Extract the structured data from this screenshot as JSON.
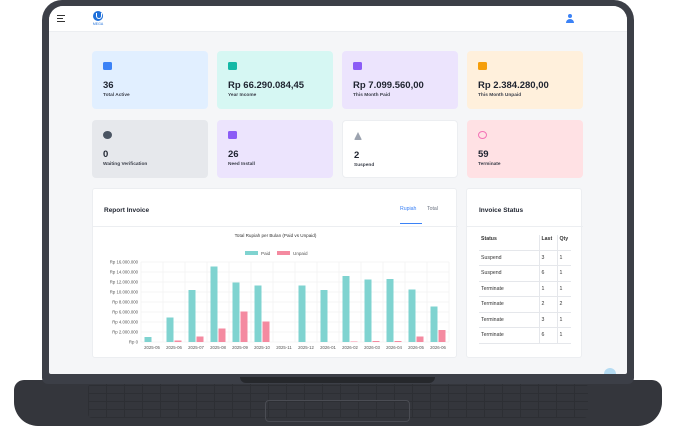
{
  "topbar": {
    "logo_text": "MEGA"
  },
  "cards": [
    {
      "value": "36",
      "label": "Total Active",
      "icon": "users-icon",
      "bg": "#e1efff",
      "accent": "#3b82f6"
    },
    {
      "value": "Rp 66.290.084,45",
      "label": "Year Income",
      "icon": "mail-icon",
      "bg": "#d6f7f3",
      "accent": "#14b8a6"
    },
    {
      "value": "Rp 7.099.560,00",
      "label": "This Month Paid",
      "icon": "chart-icon",
      "bg": "#ece4fd",
      "accent": "#8b5cf6"
    },
    {
      "value": "Rp 2.384.280,00",
      "label": "This Month Unpaid",
      "icon": "wallet-icon",
      "bg": "#fff0dc",
      "accent": "#f59e0b"
    },
    {
      "value": "0",
      "label": "Waiting Verification",
      "icon": "clock-icon",
      "bg": "#e6e8ec",
      "accent": "#4b5563"
    },
    {
      "value": "26",
      "label": "Need Install",
      "icon": "clipboard-icon",
      "bg": "#ece4fd",
      "accent": "#8b5cf6"
    },
    {
      "value": "2",
      "label": "Suspend",
      "icon": "warning-icon",
      "bg": "#ffffff",
      "accent": "#9ca3af"
    },
    {
      "value": "59",
      "label": "Terminate",
      "icon": "block-icon",
      "bg": "#ffe1e4",
      "accent": "#f472b6"
    }
  ],
  "report": {
    "title": "Report Invoice",
    "tabs": [
      "Rupiah",
      "Total"
    ],
    "active_tab": "Rupiah"
  },
  "chart_data": {
    "type": "bar",
    "title": "Total Rupiah per Bulan (Paid vs Unpaid)",
    "categories": [
      "2025-05",
      "2025-06",
      "2025-07",
      "2025-08",
      "2025-09",
      "2025-10",
      "2025-11",
      "2025-12",
      "2026-01",
      "2026-02",
      "2026-03",
      "2026-04",
      "2026-05",
      "2026-06"
    ],
    "series": [
      {
        "name": "Paid",
        "color": "#7fd3d0",
        "values": [
          1000000,
          4900000,
          10400000,
          15100000,
          11900000,
          11300000,
          0,
          11300000,
          10400000,
          13200000,
          12500000,
          12600000,
          10500000,
          7100000
        ]
      },
      {
        "name": "Unpaid",
        "color": "#f48aa0",
        "values": [
          0,
          300000,
          1100000,
          2700000,
          6100000,
          4100000,
          0,
          0,
          0,
          100000,
          200000,
          200000,
          1100000,
          2400000
        ]
      }
    ],
    "yticks": [
      "Rp 0",
      "Rp 2.000.000",
      "Rp 4.000.000",
      "Rp 6.000.000",
      "Rp 8.000.000",
      "Rp 10.000.000",
      "Rp 12.000.000",
      "Rp 14.000.000",
      "Rp 16.000.000"
    ],
    "ylim": [
      0,
      16000000
    ],
    "legend": "top-center",
    "grid": true
  },
  "status": {
    "title": "Invoice Status",
    "headers": [
      "Status",
      "Last",
      "Qty"
    ],
    "rows": [
      [
        "Suspend",
        "3",
        "1"
      ],
      [
        "Suspend",
        "6",
        "1"
      ],
      [
        "Terminate",
        "1",
        "1"
      ],
      [
        "Terminate",
        "2",
        "2"
      ],
      [
        "Terminate",
        "3",
        "1"
      ],
      [
        "Terminate",
        "6",
        "1"
      ]
    ]
  }
}
